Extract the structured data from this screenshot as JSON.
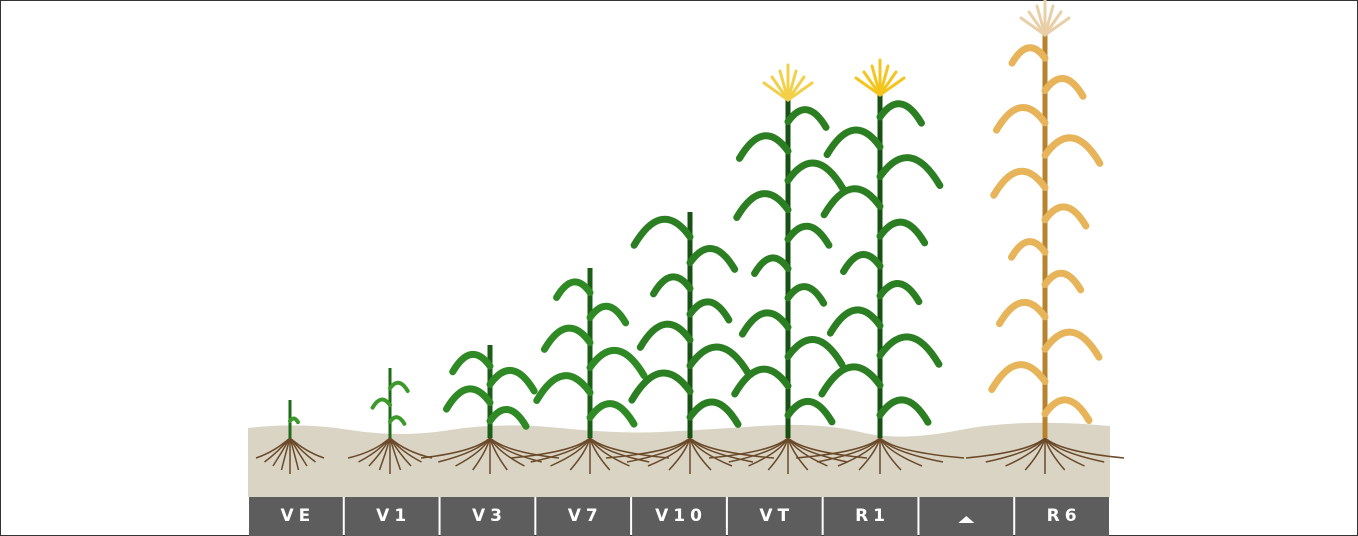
{
  "stages": {
    "labels": [
      "VE",
      "V1",
      "V3",
      "V7",
      "V10",
      "VT",
      "R1",
      null,
      "R6"
    ]
  }
}
